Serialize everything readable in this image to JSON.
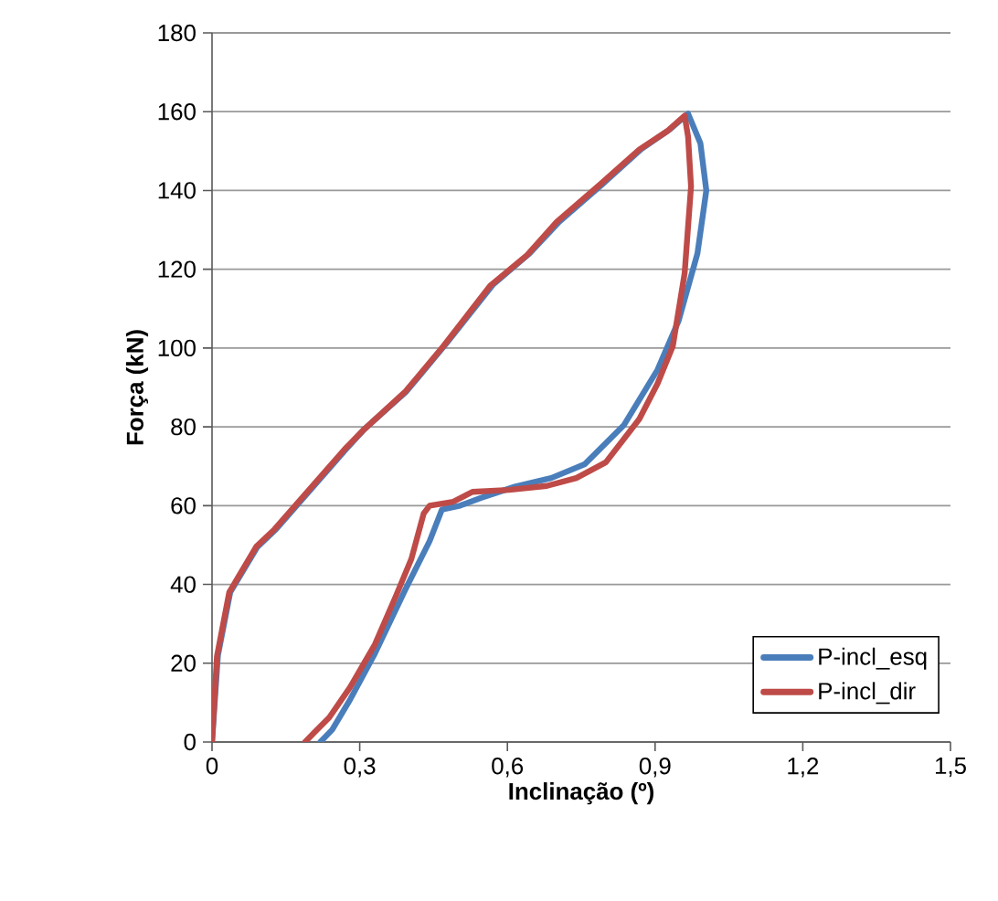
{
  "chart_data": {
    "type": "line",
    "xlabel": "Inclinação (º)",
    "ylabel": "Força (kN)",
    "xlim": [
      0,
      1.5
    ],
    "ylim": [
      0,
      180
    ],
    "xticks": [
      0,
      {
        "value": 0.3,
        "label": "0,3"
      },
      {
        "value": 0.6,
        "label": "0,6"
      },
      {
        "value": 0.9,
        "label": "0,9"
      },
      {
        "value": 1.2,
        "label": "1,2"
      },
      {
        "value": 1.5,
        "label": "1,5"
      }
    ],
    "yticks": [
      0,
      20,
      40,
      60,
      80,
      100,
      120,
      140,
      160,
      180
    ],
    "grid": "y",
    "legend": "bottom right",
    "marker": "none",
    "line_style": "solid",
    "series": [
      {
        "name": "P-incl_esq",
        "color": "#4a7ebb",
        "x": [
          0,
          0.012,
          0.037,
          0.092,
          0.13,
          0.27,
          0.31,
          0.395,
          0.425,
          0.475,
          0.57,
          0.645,
          0.705,
          0.792,
          0.872,
          0.93,
          0.967,
          0.992,
          1.004,
          0.986,
          0.948,
          0.905,
          0.837,
          0.757,
          0.689,
          0.615,
          0.547,
          0.504,
          0.467,
          0.442,
          0.393,
          0.331,
          0.281,
          0.244,
          0.22
        ],
        "values": [
          0,
          22,
          38,
          49.5,
          54,
          74,
          79.5,
          89,
          93.5,
          101,
          116,
          124,
          132,
          141.5,
          150.5,
          155.5,
          159.5,
          152,
          140,
          124,
          107,
          94.5,
          80.5,
          70.5,
          67,
          64.8,
          62,
          60,
          59,
          51,
          38.8,
          22.5,
          10.9,
          3.1,
          0
        ]
      },
      {
        "name": "P-incl_dir",
        "color": "#be4b48",
        "x": [
          0,
          0.01,
          0.035,
          0.09,
          0.127,
          0.27,
          0.306,
          0.393,
          0.42,
          0.47,
          0.565,
          0.64,
          0.7,
          0.788,
          0.868,
          0.924,
          0.96,
          0.967,
          0.973,
          0.96,
          0.936,
          0.905,
          0.868,
          0.8,
          0.74,
          0.68,
          0.603,
          0.529,
          0.49,
          0.442,
          0.43,
          0.405,
          0.374,
          0.331,
          0.281,
          0.238,
          0.207,
          0.189
        ],
        "values": [
          0,
          21.7,
          38,
          49.6,
          54,
          74.4,
          79,
          89,
          93,
          100.5,
          115.8,
          123.6,
          132,
          141.5,
          150.4,
          155,
          159,
          153.6,
          141,
          119,
          100.5,
          91,
          82,
          71,
          67,
          65,
          64,
          63.5,
          61,
          60,
          58,
          46.5,
          37.2,
          24.8,
          14,
          6.2,
          2.3,
          0
        ]
      }
    ]
  }
}
